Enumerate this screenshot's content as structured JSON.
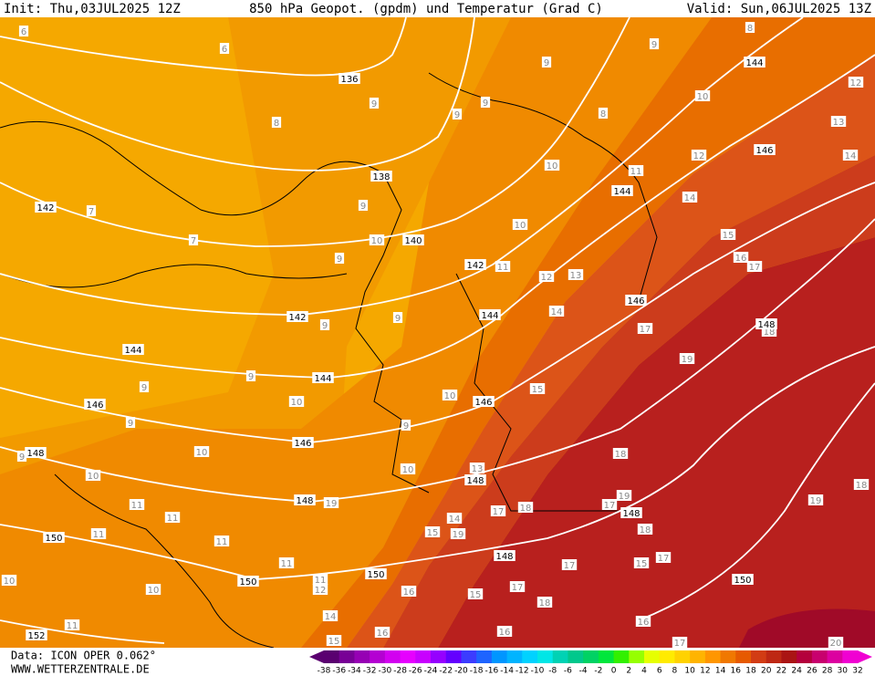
{
  "header": {
    "init": "Init: Thu,03JUL2025 12Z",
    "title": "850 hPa Geopot. (gpdm) und Temperatur (Grad C)",
    "valid": "Valid: Sun,06JUL2025 13Z"
  },
  "footer": {
    "source": "Data: ICON OPER 0.062°",
    "site": "WWW.WETTERZENTRALE.DE"
  },
  "colorbar": {
    "ticks": [
      -38,
      -36,
      -34,
      -32,
      -30,
      -28,
      -26,
      -24,
      -22,
      -20,
      -18,
      -16,
      -14,
      -12,
      -10,
      -8,
      -6,
      -4,
      -2,
      0,
      2,
      4,
      6,
      8,
      10,
      12,
      14,
      16,
      18,
      20,
      22,
      24,
      26,
      28,
      30,
      32
    ],
    "colors": [
      "#5a0070",
      "#780096",
      "#9600b4",
      "#b400d2",
      "#d200f0",
      "#e600ff",
      "#c800ff",
      "#9600ff",
      "#6400ff",
      "#3c3cff",
      "#1e64ff",
      "#0096ff",
      "#00b4ff",
      "#00d2ff",
      "#00e6e6",
      "#00d2b4",
      "#00c88c",
      "#00d264",
      "#00e63c",
      "#32f000",
      "#96ff00",
      "#e6ff00",
      "#ffeb00",
      "#ffd200",
      "#ffb400",
      "#ff9600",
      "#f07800",
      "#e65a00",
      "#d23c14",
      "#be2814",
      "#aa1414",
      "#b4003c",
      "#c8006e",
      "#dc00a0",
      "#f000d2"
    ]
  },
  "map": {
    "geopotential_labels": [
      "136",
      "138",
      "140",
      "142",
      "142",
      "142",
      "144",
      "144",
      "144",
      "144",
      "144",
      "146",
      "146",
      "146",
      "146",
      "146",
      "148",
      "148",
      "148",
      "148",
      "148",
      "148",
      "150",
      "150",
      "150",
      "150",
      "152"
    ],
    "temperature_labels": [
      "10",
      "10",
      "10",
      "10",
      "10",
      "10",
      "10",
      "10",
      "10",
      "10",
      "10",
      "11",
      "11",
      "11",
      "11",
      "11",
      "11",
      "11",
      "11",
      "11",
      "12",
      "12",
      "12",
      "12",
      "13",
      "13",
      "13",
      "14",
      "14",
      "14",
      "14",
      "14",
      "15",
      "15",
      "15",
      "15",
      "15",
      "15",
      "16",
      "16",
      "16",
      "16",
      "16",
      "17",
      "17",
      "17",
      "17",
      "17",
      "17",
      "17",
      "17",
      "18",
      "18",
      "18",
      "18",
      "18",
      "18",
      "19",
      "19",
      "19",
      "19",
      "19",
      "20",
      "9",
      "9",
      "9",
      "9",
      "9",
      "9",
      "9",
      "9",
      "9",
      "9",
      "9",
      "9",
      "9",
      "9",
      "8",
      "8",
      "8",
      "7",
      "7",
      "6",
      "6"
    ]
  }
}
